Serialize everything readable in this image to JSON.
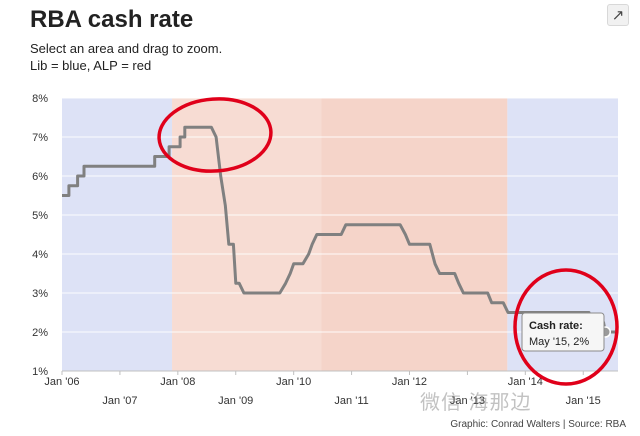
{
  "header": {
    "title": "RBA cash rate",
    "subtitle_line1": "Select an area and drag to zoom.",
    "subtitle_line2": "Lib = blue, ALP = red"
  },
  "footer": {
    "credit": "Graphic: Conrad Walters | Source: RBA"
  },
  "watermark": {
    "text": "微信 海那边"
  },
  "tooltip": {
    "title": "Cash rate:",
    "value": "May '15, 2%"
  },
  "colors": {
    "line": "#808080",
    "lib_band": "#dde2f6",
    "alp_band": "#f7dcd3",
    "alp_band_alt": "#f5d4c9",
    "annotation": "#e0001a",
    "plot_bg": "#ffffff"
  },
  "icons": {
    "share": "share-icon"
  },
  "chart_data": {
    "type": "line",
    "title": "RBA cash rate",
    "series": [
      {
        "points": [
          [
            2006.0,
            5.5
          ],
          [
            2006.12,
            5.5
          ],
          [
            2006.12,
            5.75
          ],
          [
            2006.27,
            5.75
          ],
          [
            2006.27,
            6.0
          ],
          [
            2006.38,
            6.0
          ],
          [
            2006.38,
            6.25
          ],
          [
            2007.6,
            6.25
          ],
          [
            2007.6,
            6.5
          ],
          [
            2007.85,
            6.5
          ],
          [
            2007.85,
            6.75
          ],
          [
            2008.04,
            6.75
          ],
          [
            2008.04,
            7.0
          ],
          [
            2008.12,
            7.0
          ],
          [
            2008.12,
            7.25
          ],
          [
            2008.58,
            7.25
          ],
          [
            2008.66,
            7.0
          ],
          [
            2008.74,
            6.0
          ],
          [
            2008.82,
            5.25
          ],
          [
            2008.88,
            4.25
          ],
          [
            2008.96,
            4.25
          ],
          [
            2009.0,
            3.25
          ],
          [
            2009.06,
            3.25
          ],
          [
            2009.14,
            3.0
          ],
          [
            2009.76,
            3.0
          ],
          [
            2009.86,
            3.25
          ],
          [
            2009.94,
            3.5
          ],
          [
            2010.0,
            3.75
          ],
          [
            2010.16,
            3.75
          ],
          [
            2010.26,
            4.0
          ],
          [
            2010.32,
            4.25
          ],
          [
            2010.4,
            4.5
          ],
          [
            2010.82,
            4.5
          ],
          [
            2010.9,
            4.75
          ],
          [
            2011.84,
            4.75
          ],
          [
            2011.93,
            4.5
          ],
          [
            2012.0,
            4.25
          ],
          [
            2012.35,
            4.25
          ],
          [
            2012.44,
            3.75
          ],
          [
            2012.52,
            3.5
          ],
          [
            2012.78,
            3.5
          ],
          [
            2012.85,
            3.25
          ],
          [
            2012.93,
            3.0
          ],
          [
            2013.35,
            3.0
          ],
          [
            2013.42,
            2.75
          ],
          [
            2013.62,
            2.75
          ],
          [
            2013.7,
            2.5
          ],
          [
            2015.1,
            2.5
          ],
          [
            2015.12,
            2.25
          ],
          [
            2015.35,
            2.25
          ],
          [
            2015.38,
            2.0
          ],
          [
            2015.55,
            2.0
          ]
        ]
      }
    ],
    "x_ticks": [
      "Jan '06",
      "Jan '07",
      "Jan '08",
      "Jan '09",
      "Jan '10",
      "Jan '11",
      "Jan '12",
      "Jan '13",
      "Jan '14",
      "Jan '15"
    ],
    "x_tick_values": [
      2006,
      2007,
      2008,
      2009,
      2010,
      2011,
      2012,
      2013,
      2014,
      2015
    ],
    "y_ticks": [
      "1%",
      "2%",
      "3%",
      "4%",
      "5%",
      "6%",
      "7%",
      "8%"
    ],
    "y_tick_values": [
      1,
      2,
      3,
      4,
      5,
      6,
      7,
      8
    ],
    "xlim": [
      2006.0,
      2015.6
    ],
    "ylim": [
      1,
      8
    ],
    "grid": true,
    "bands": [
      {
        "party": "Lib",
        "from": 2006.0,
        "to": 2007.9
      },
      {
        "party": "ALP",
        "from": 2007.9,
        "to": 2010.48
      },
      {
        "party": "ALP",
        "from": 2010.48,
        "to": 2013.69
      },
      {
        "party": "Lib",
        "from": 2013.69,
        "to": 2015.6
      }
    ],
    "highlight": {
      "x": 2015.38,
      "y": 2.0
    }
  }
}
